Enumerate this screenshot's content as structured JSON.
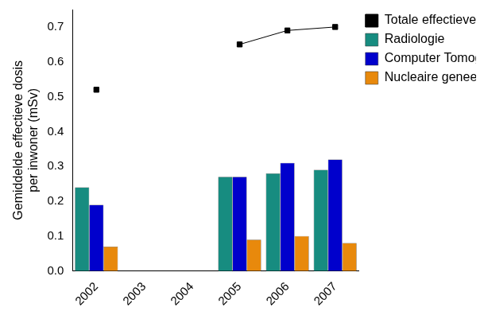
{
  "chart_data": {
    "type": "bar",
    "categories": [
      "2002",
      "2003",
      "2004",
      "2005",
      "2006",
      "2007"
    ],
    "series": [
      {
        "name": "Radiologie",
        "color": "#178c80",
        "values": [
          0.24,
          null,
          null,
          0.27,
          0.28,
          0.29
        ]
      },
      {
        "name": "Computer Tomografie",
        "color": "#0000cc",
        "values": [
          0.19,
          null,
          null,
          0.27,
          0.31,
          0.32
        ]
      },
      {
        "name": "Nucleaire geneeskunde",
        "color": "#e8890c",
        "values": [
          0.07,
          null,
          null,
          0.09,
          0.1,
          0.08
        ]
      },
      {
        "name": "Totale effectieve dosis",
        "type": "line",
        "color": "#000000",
        "marker": "square",
        "values": [
          0.52,
          null,
          null,
          0.65,
          0.69,
          0.7
        ]
      }
    ],
    "y_label": [
      "Gemiddelde effectieve dosis",
      "per inwoner (mSv)"
    ],
    "ylim": [
      0,
      0.75
    ],
    "yticks": [
      {
        "value": 0,
        "label": "0.0"
      },
      0.1,
      0.2,
      0.3,
      0.4,
      0.5,
      0.6,
      0.7
    ],
    "grid": false,
    "legend": "upper right"
  }
}
